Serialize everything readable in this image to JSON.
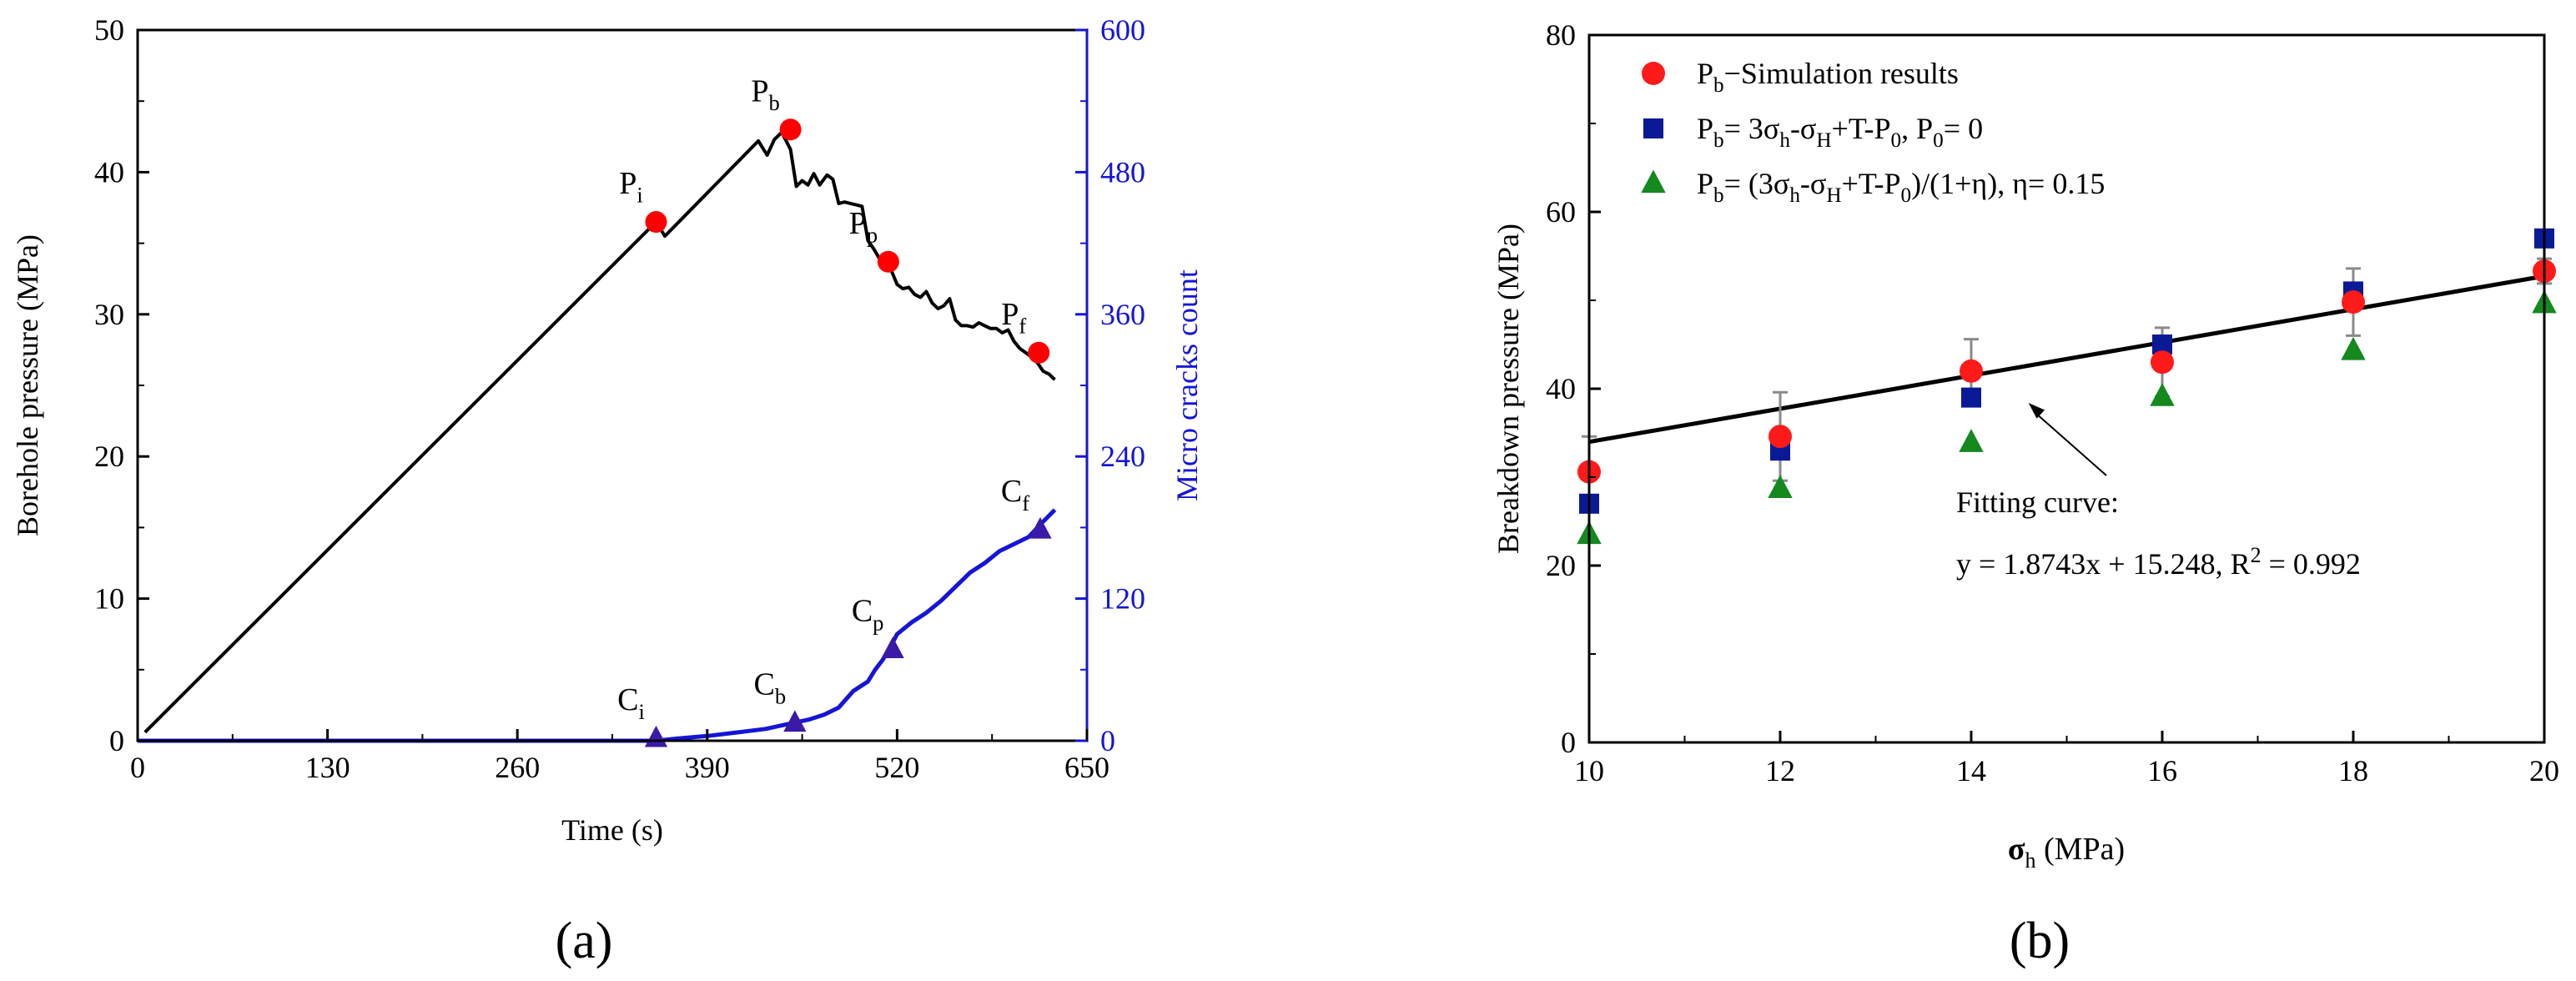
{
  "chart_data": [
    {
      "type": "line",
      "panel_label": "(a)",
      "xlabel": "Time (s)",
      "ylabel": "Borehole pressure (MPa)",
      "y2label": "Micro cracks count",
      "xlim": [
        0,
        650
      ],
      "ylim": [
        0,
        50
      ],
      "y2lim": [
        0,
        600
      ],
      "xticks": [
        "0",
        "130",
        "260",
        "390",
        "520",
        "650"
      ],
      "yticks": [
        "0",
        "10",
        "20",
        "30",
        "40",
        "50"
      ],
      "y2ticks": [
        "0",
        "120",
        "240",
        "360",
        "480",
        "600"
      ],
      "series": [
        {
          "name": "Borehole pressure",
          "axis": "left",
          "color": "#000000",
          "x": [
            5,
            355,
            361,
            425,
            431,
            436,
            441,
            447,
            451,
            455,
            459,
            463,
            467,
            472,
            476,
            480,
            484,
            488,
            492,
            496,
            500,
            504,
            508,
            512,
            516,
            520,
            524,
            528,
            532,
            536,
            540,
            544,
            548,
            552,
            556,
            560,
            564,
            568,
            572,
            576,
            580,
            584,
            588,
            592,
            596,
            600,
            604,
            608,
            612,
            616,
            620,
            624,
            628
          ],
          "y": [
            0.6,
            36.5,
            35.5,
            42.2,
            41.2,
            42.3,
            42.8,
            41.6,
            39.0,
            39.4,
            39.1,
            39.9,
            39.1,
            39.8,
            39.5,
            37.8,
            37.9,
            37.8,
            37.7,
            37.6,
            35.2,
            34.6,
            33.9,
            33.7,
            33.1,
            32.1,
            31.8,
            31.9,
            31.4,
            31.2,
            31.6,
            30.8,
            30.4,
            30.6,
            31.1,
            29.6,
            29.2,
            29.2,
            29.1,
            29.4,
            29.2,
            29.0,
            29.0,
            28.7,
            28.9,
            28.1,
            27.6,
            27.3,
            27.0,
            26.6,
            26.0,
            25.8,
            25.4
          ]
        },
        {
          "name": "Micro cracks count",
          "axis": "right",
          "color": "#1515d8",
          "x": [
            0,
            355,
            370,
            390,
            410,
            430,
            445,
            460,
            470,
            480,
            490,
            500,
            505,
            510,
            515,
            520,
            530,
            540,
            550,
            560,
            570,
            580,
            590,
            600,
            610,
            620,
            628
          ],
          "y": [
            0,
            0,
            2,
            4,
            7,
            10,
            14,
            18,
            22,
            28,
            42,
            50,
            60,
            68,
            78,
            90,
            100,
            108,
            118,
            130,
            142,
            150,
            160,
            166,
            172,
            185,
            195
          ]
        }
      ],
      "markers": [
        {
          "label": "P",
          "sub": "i",
          "x": 355,
          "y": 36.5,
          "axis": "left",
          "shape": "circle",
          "color": "#ff0000"
        },
        {
          "label": "P",
          "sub": "b",
          "x": 447,
          "y": 43.0,
          "axis": "left",
          "shape": "circle",
          "color": "#ff0000"
        },
        {
          "label": "P",
          "sub": "p",
          "x": 514,
          "y": 33.7,
          "axis": "left",
          "shape": "circle",
          "color": "#ff0000"
        },
        {
          "label": "P",
          "sub": "f",
          "x": 617,
          "y": 27.3,
          "axis": "left",
          "shape": "circle",
          "color": "#ff0000"
        },
        {
          "label": "C",
          "sub": "i",
          "x": 355,
          "y": 2,
          "axis": "right",
          "shape": "triangle",
          "color": "#3b1aa8"
        },
        {
          "label": "C",
          "sub": "b",
          "x": 450,
          "y": 15,
          "axis": "right",
          "shape": "triangle",
          "color": "#3b1aa8"
        },
        {
          "label": "C",
          "sub": "p",
          "x": 517,
          "y": 77,
          "axis": "right",
          "shape": "triangle",
          "color": "#3b1aa8"
        },
        {
          "label": "C",
          "sub": "f",
          "x": 618,
          "y": 178,
          "axis": "right",
          "shape": "triangle",
          "color": "#3b1aa8"
        }
      ]
    },
    {
      "type": "scatter",
      "panel_label": "(b)",
      "xlabel": "σ",
      "xlabel_sub": "h",
      "xlabel_unit": " (MPa)",
      "ylabel": "Breakdown pressure (MPa)",
      "xlim": [
        10,
        20
      ],
      "ylim": [
        0,
        80
      ],
      "xticks": [
        "10",
        "12",
        "14",
        "16",
        "18",
        "20"
      ],
      "yticks": [
        "0",
        "20",
        "40",
        "60",
        "80"
      ],
      "series": [
        {
          "name": "Pb−Simulation results",
          "legend_label": "P_{b}−Simulation results",
          "shape": "circle",
          "color": "#ff1a1a",
          "x": [
            10,
            12,
            14,
            16,
            18,
            20
          ],
          "y": [
            30.6,
            34.6,
            42.0,
            43.0,
            49.8,
            53.3
          ],
          "error": [
            4.0,
            5.0,
            3.6,
            3.9,
            3.8,
            1.4
          ]
        },
        {
          "name": "Pb=3σh-σH+T-P0, P0=0",
          "legend_label": "P_{b}= 3σ_{h}-σ_{H}+T-P_{0}, P_{0}= 0",
          "shape": "square",
          "color": "#0a1a96",
          "x": [
            10,
            12,
            14,
            16,
            18,
            20
          ],
          "y": [
            27.0,
            33.0,
            39.0,
            45.0,
            51.0,
            57.0
          ]
        },
        {
          "name": "Pb=(3σh-σH+T-P0)/(1+η), η=0.15",
          "legend_label": "P_{b}= (3σ_{h}-σ_{H}+T-P_{0})/(1+η), η= 0.15",
          "shape": "triangle",
          "color": "#14891e",
          "x": [
            10,
            12,
            14,
            16,
            18,
            20
          ],
          "y": [
            23.5,
            28.7,
            33.9,
            39.1,
            44.3,
            49.6
          ]
        }
      ],
      "fit": {
        "slope": 1.8743,
        "intercept": 15.248,
        "x_range": [
          10,
          20
        ],
        "color": "#000000"
      },
      "annotation": {
        "title": "Fitting curve:",
        "equation": "y = 1.8743x + 15.248, R",
        "sup": "2",
        "tail": " = 0.992",
        "arrow_to": [
          14.6,
          38.4
        ]
      }
    }
  ]
}
